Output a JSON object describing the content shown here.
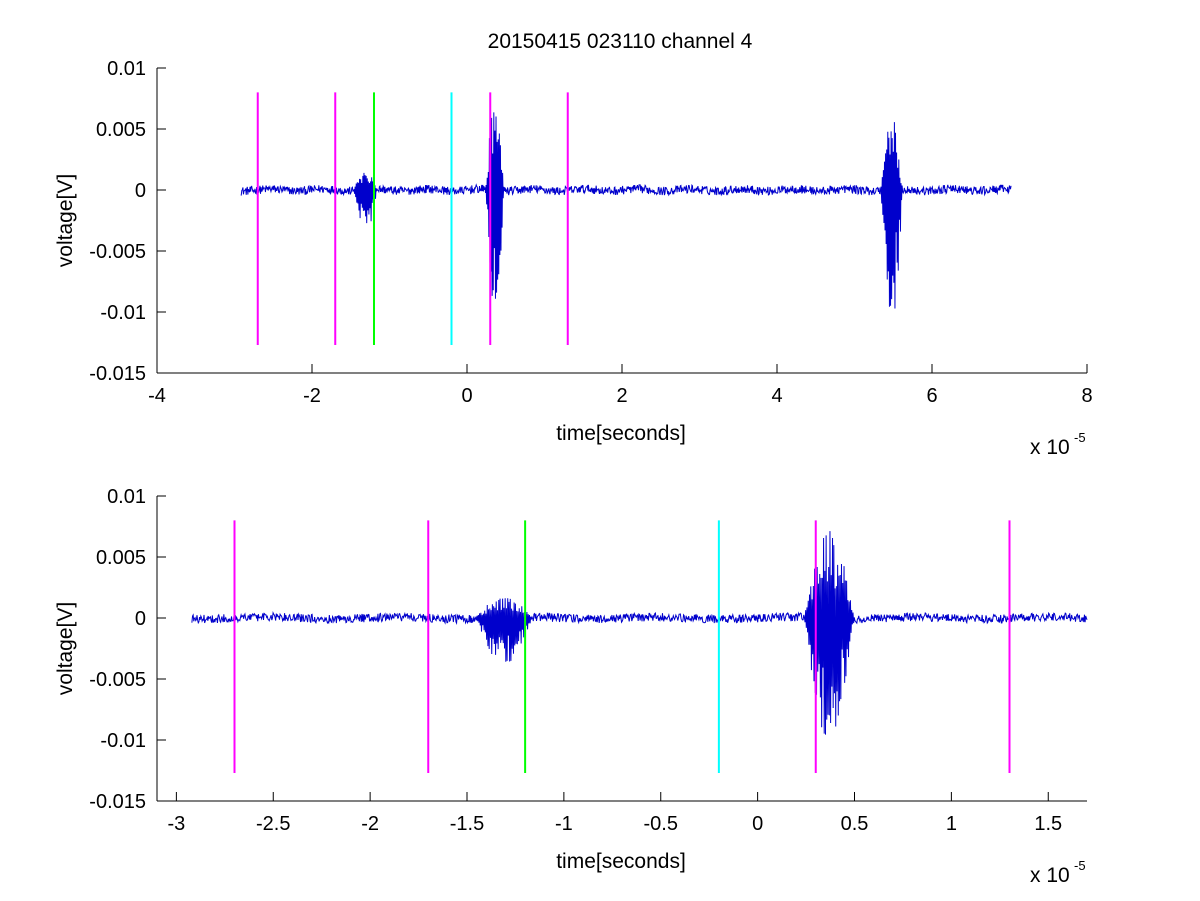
{
  "figure": {
    "title": "20150415 023110 channel 4"
  },
  "chart_data": [
    {
      "type": "line",
      "title": "20150415 023110 channel 4",
      "xlabel": "time[seconds]",
      "ylabel": "voltage[V]",
      "x_multiplier_label": "x 10",
      "x_multiplier_exponent": "-5",
      "xlim": [
        -4,
        8
      ],
      "ylim": [
        -0.015,
        0.01
      ],
      "xticks": [
        -4,
        -2,
        0,
        2,
        4,
        6,
        8
      ],
      "xtick_labels": [
        "-4",
        "-2",
        "0",
        "2",
        "4",
        "6",
        "8"
      ],
      "yticks": [
        -0.015,
        -0.01,
        -0.005,
        0,
        0.005,
        0.01
      ],
      "ytick_labels": [
        "-0.015",
        "-0.01",
        "-0.005",
        "0",
        "0.005",
        "0.01"
      ],
      "grid": false,
      "series": [
        {
          "color": "#0000cc",
          "x_range": [
            -2.92,
            7.02
          ],
          "bursts": [
            {
              "x": [
                -1.46,
                -1.16
              ],
              "ymin": -0.0038,
              "ymax": 0.0017
            },
            {
              "x": [
                0.24,
                0.48
              ],
              "ymin": -0.0102,
              "ymax": 0.0072
            },
            {
              "x": [
                5.34,
                5.62
              ],
              "ymin": -0.0116,
              "ymax": 0.0061
            }
          ]
        }
      ],
      "vlines": [
        {
          "x": -2.7,
          "color": "#ff00ff",
          "y": [
            -0.0127,
            0.008
          ]
        },
        {
          "x": -1.7,
          "color": "#ff00ff",
          "y": [
            -0.0127,
            0.008
          ]
        },
        {
          "x": -1.2,
          "color": "#00ff00",
          "y": [
            -0.0127,
            0.008
          ]
        },
        {
          "x": -0.2,
          "color": "#00ffff",
          "y": [
            -0.0127,
            0.008
          ]
        },
        {
          "x": 0.3,
          "color": "#ff00ff",
          "y": [
            -0.0127,
            0.008
          ]
        },
        {
          "x": 1.3,
          "color": "#ff00ff",
          "y": [
            -0.0127,
            0.008
          ]
        }
      ]
    },
    {
      "type": "line",
      "xlabel": "time[seconds]",
      "ylabel": "voltage[V]",
      "x_multiplier_label": "x 10",
      "x_multiplier_exponent": "-5",
      "xlim": [
        -3.1,
        1.7
      ],
      "ylim": [
        -0.015,
        0.01
      ],
      "xticks": [
        -3,
        -2.5,
        -2,
        -1.5,
        -1,
        -0.5,
        0,
        0.5,
        1,
        1.5
      ],
      "xtick_labels": [
        "-3",
        "-2.5",
        "-2",
        "-1.5",
        "-1",
        "-0.5",
        "0",
        "0.5",
        "1",
        "1.5"
      ],
      "yticks": [
        -0.015,
        -0.01,
        -0.005,
        0,
        0.005,
        0.01
      ],
      "ytick_labels": [
        "-0.015",
        "-0.01",
        "-0.005",
        "0",
        "0.005",
        "0.01"
      ],
      "grid": false,
      "series": [
        {
          "color": "#0000cc",
          "x_range": [
            -2.92,
            1.7
          ],
          "bursts": [
            {
              "x": [
                -1.46,
                -1.16
              ],
              "ymin": -0.0038,
              "ymax": 0.0017
            },
            {
              "x": [
                0.24,
                0.5
              ],
              "ymin": -0.0102,
              "ymax": 0.0072
            }
          ]
        }
      ],
      "vlines": [
        {
          "x": -2.7,
          "color": "#ff00ff",
          "y": [
            -0.0127,
            0.008
          ]
        },
        {
          "x": -1.7,
          "color": "#ff00ff",
          "y": [
            -0.0127,
            0.008
          ]
        },
        {
          "x": -1.2,
          "color": "#00ff00",
          "y": [
            -0.0127,
            0.008
          ]
        },
        {
          "x": -0.2,
          "color": "#00ffff",
          "y": [
            -0.0127,
            0.008
          ]
        },
        {
          "x": 0.3,
          "color": "#ff00ff",
          "y": [
            -0.0127,
            0.008
          ]
        },
        {
          "x": 1.3,
          "color": "#ff00ff",
          "y": [
            -0.0127,
            0.008
          ]
        }
      ]
    }
  ]
}
